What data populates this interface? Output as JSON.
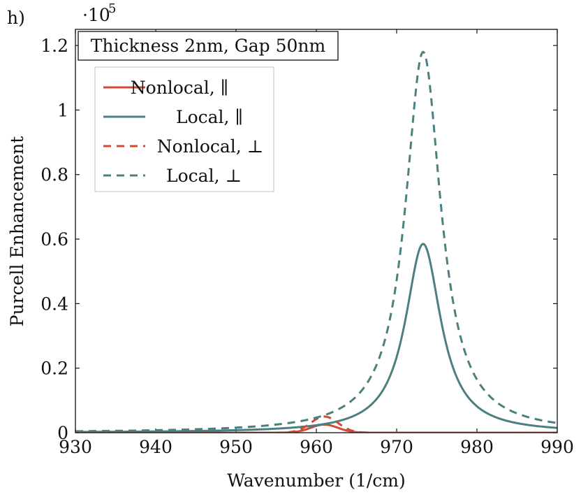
{
  "chart_data": {
    "type": "line",
    "panel_label": "h)",
    "title": "Thickness 2nm, Gap 50nm",
    "xlabel": "Wavenumber (1/cm)",
    "ylabel": "Purcell Enhancement",
    "y_multiplier_base": "·10",
    "y_multiplier_exp": "5",
    "xlim": [
      930,
      990
    ],
    "ylim": [
      0,
      1.25
    ],
    "x_ticks": [
      930,
      940,
      950,
      960,
      970,
      980,
      990
    ],
    "x_tick_labels": [
      "930",
      "940",
      "950",
      "960",
      "970",
      "980",
      "990"
    ],
    "y_ticks": [
      0,
      0.2,
      0.4,
      0.6,
      0.8,
      1.0,
      1.2
    ],
    "y_tick_labels": [
      "0",
      "0.2",
      "0.4",
      "0.6",
      "0.8",
      "1",
      "1.2"
    ],
    "legend_position": "top-left",
    "series": [
      {
        "name": "Nonlocal, ∥",
        "color": "#d24a36",
        "style": "solid",
        "peak_x": 961.0,
        "peak_y": 0.025,
        "width": 2.4,
        "shape": "gaussian"
      },
      {
        "name": "Local, ∥",
        "color": "#4b7f80",
        "style": "solid",
        "peak_x": 973.3,
        "peak_y": 0.585,
        "width": 2.7,
        "shape": "lorentzian"
      },
      {
        "name": "Nonlocal, ⊥",
        "color": "#d24a36",
        "style": "dashed",
        "peak_x": 961.0,
        "peak_y": 0.05,
        "width": 2.4,
        "shape": "gaussian"
      },
      {
        "name": "Local, ⊥",
        "color": "#4b7f80",
        "style": "dashed",
        "peak_x": 973.3,
        "peak_y": 1.18,
        "width": 2.7,
        "shape": "lorentzian"
      }
    ]
  }
}
